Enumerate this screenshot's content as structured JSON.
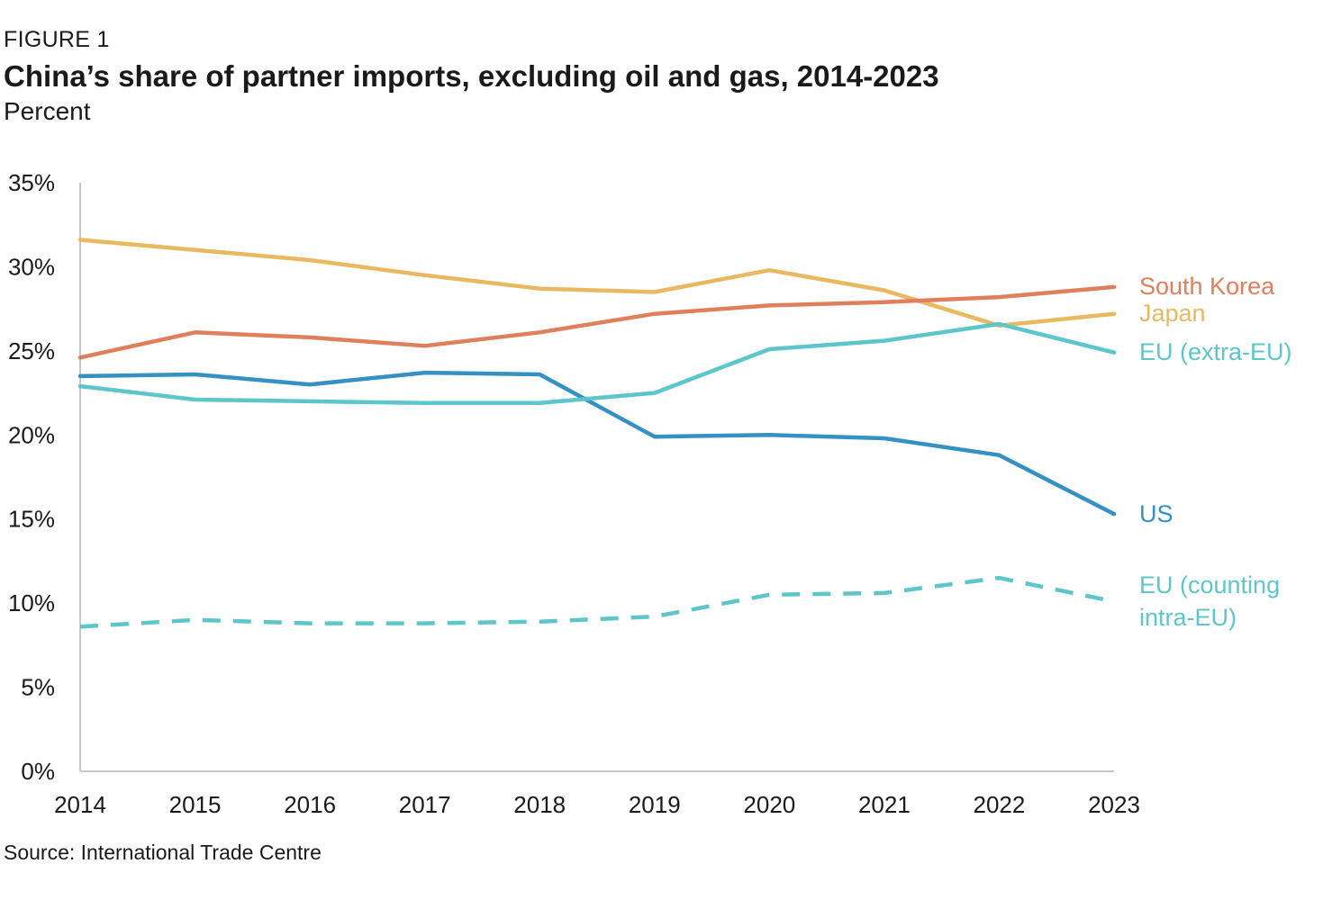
{
  "figure_label": "FIGURE 1",
  "chart_data": {
    "type": "line",
    "title": "China’s share of partner imports, excluding oil and gas, 2014-2023",
    "subtitle": "Percent",
    "source": "Source: International Trade Centre",
    "xlabel": "",
    "ylabel": "Percent",
    "categories": [
      "2014",
      "2015",
      "2016",
      "2017",
      "2018",
      "2019",
      "2020",
      "2021",
      "2022",
      "2023"
    ],
    "ylim": [
      0,
      35
    ],
    "y_ticks": [
      0,
      5,
      10,
      15,
      20,
      25,
      30,
      35
    ],
    "y_tick_labels": [
      "0%",
      "5%",
      "10%",
      "15%",
      "20%",
      "25%",
      "30%",
      "35%"
    ],
    "series": [
      {
        "name": "Japan",
        "label_lines": [
          "Japan"
        ],
        "color": "#E8B960",
        "style": "solid",
        "values": [
          31.6,
          31.0,
          30.4,
          29.5,
          28.7,
          28.5,
          29.8,
          28.6,
          26.5,
          27.2
        ]
      },
      {
        "name": "South Korea",
        "label_lines": [
          "South Korea"
        ],
        "color": "#E07F5C",
        "style": "solid",
        "values": [
          24.6,
          26.1,
          25.8,
          25.3,
          26.1,
          27.2,
          27.7,
          27.9,
          28.2,
          28.8
        ]
      },
      {
        "name": "US",
        "label_lines": [
          "US"
        ],
        "color": "#3590C4",
        "style": "solid",
        "values": [
          23.5,
          23.6,
          23.0,
          23.7,
          23.6,
          19.9,
          20.0,
          19.8,
          18.8,
          15.3
        ]
      },
      {
        "name": "EU (extra-EU)",
        "label_lines": [
          "EU (extra-EU)"
        ],
        "color": "#5CC6CB",
        "style": "solid",
        "values": [
          22.9,
          22.1,
          22.0,
          21.9,
          21.9,
          22.5,
          25.1,
          25.6,
          26.6,
          24.9
        ]
      },
      {
        "name": "EU (counting intra-EU)",
        "label_lines": [
          "EU (counting",
          "intra-EU)"
        ],
        "color": "#5CC6CB",
        "style": "dashed",
        "values": [
          8.6,
          9.0,
          8.8,
          8.8,
          8.9,
          9.2,
          10.5,
          10.6,
          11.5,
          10.1
        ]
      }
    ]
  }
}
